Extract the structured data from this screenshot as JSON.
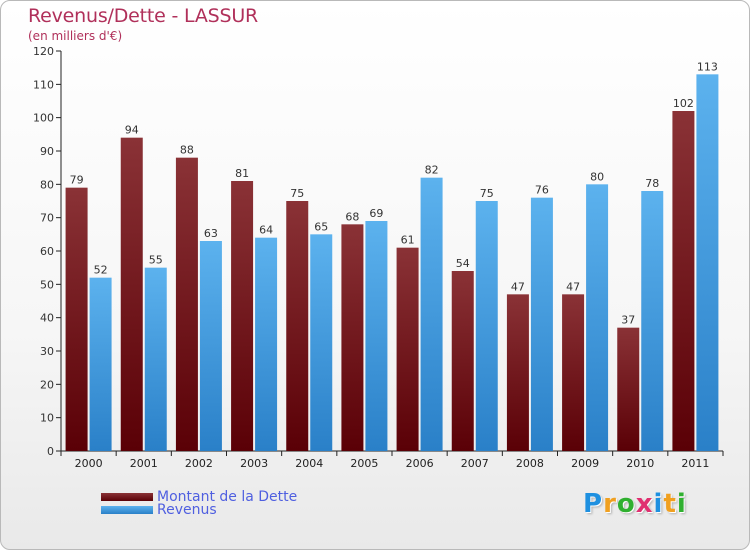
{
  "header": {
    "title": "Revenus/Dette - LASSUR",
    "subtitle": "(en milliers d'€)"
  },
  "colors": {
    "dette": "#6e1014",
    "revenus": "#3f9ee0",
    "title": "#b0305a",
    "legend_text": "#4f5fe0"
  },
  "legend": [
    {
      "label": "Montant de la Dette",
      "color": "#6e1014"
    },
    {
      "label": "Revenus",
      "color": "#3f9ee0"
    }
  ],
  "logo": {
    "letters": [
      {
        "ch": "P",
        "color": "#1e90e0"
      },
      {
        "ch": "r",
        "color": "#f0a020"
      },
      {
        "ch": "o",
        "color": "#30b030"
      },
      {
        "ch": "x",
        "color": "#e03070"
      },
      {
        "ch": "i",
        "color": "#1e90e0"
      },
      {
        "ch": "t",
        "color": "#f0a020"
      },
      {
        "ch": "i",
        "color": "#30b030"
      }
    ]
  },
  "chart_data": {
    "type": "bar",
    "title": "Revenus/Dette - LASSUR",
    "subtitle": "(en milliers d'€)",
    "categories": [
      "2000",
      "2001",
      "2002",
      "2003",
      "2004",
      "2005",
      "2006",
      "2007",
      "2008",
      "2009",
      "2010",
      "2011"
    ],
    "series": [
      {
        "name": "Montant de la Dette",
        "color": "#6e1014",
        "values": [
          79,
          94,
          88,
          81,
          75,
          68,
          61,
          54,
          47,
          47,
          37,
          102
        ]
      },
      {
        "name": "Revenus",
        "color": "#3f9ee0",
        "values": [
          52,
          55,
          63,
          64,
          65,
          69,
          82,
          75,
          76,
          80,
          78,
          113
        ]
      }
    ],
    "ylim": [
      0,
      120
    ],
    "yticks": [
      0,
      10,
      20,
      30,
      40,
      50,
      60,
      70,
      80,
      90,
      100,
      110,
      120
    ],
    "grid": false,
    "legend_position": "bottom-left"
  }
}
